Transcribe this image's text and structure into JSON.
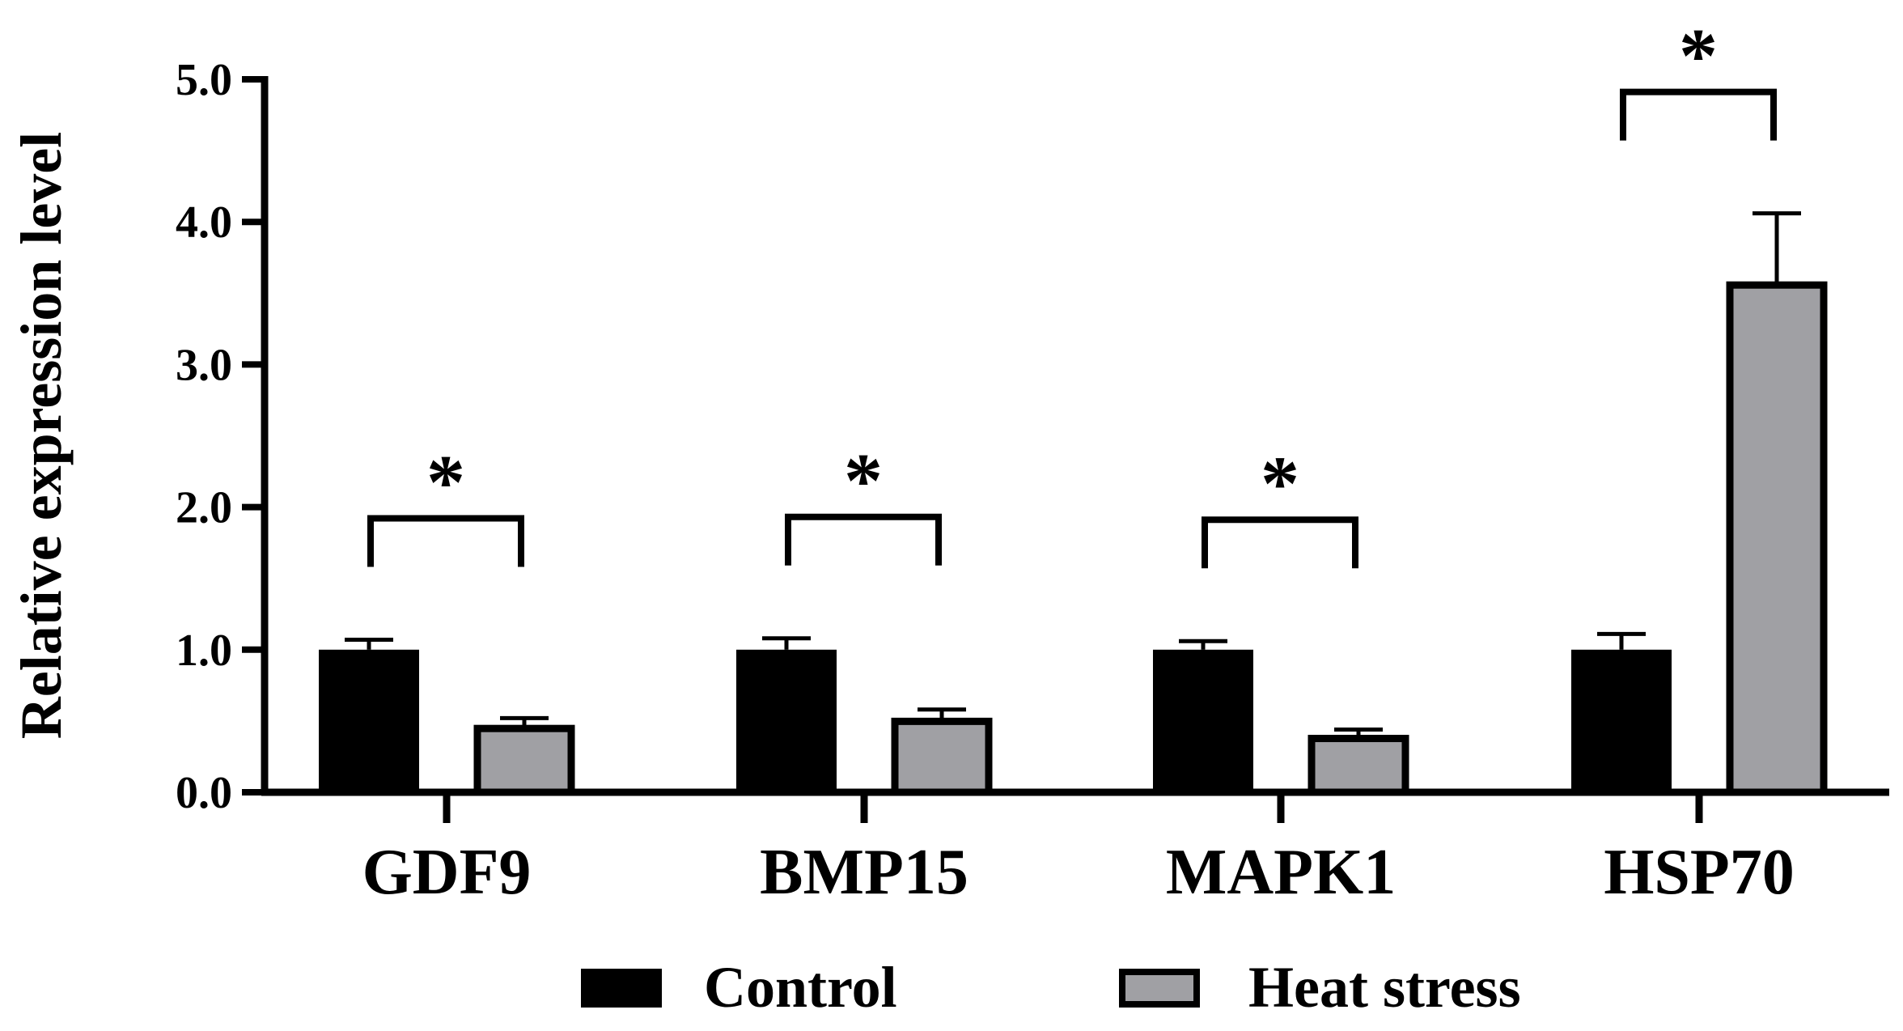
{
  "chart_data": {
    "type": "bar",
    "categories": [
      "GDF9",
      "BMP15",
      "MAPK1",
      "HSP70"
    ],
    "ylabel": "Relative expression level",
    "xlabel": "",
    "title": "",
    "ylim": [
      0,
      5.0
    ],
    "yticks": [
      "0.0",
      "1.0",
      "2.0",
      "3.0",
      "4.0",
      "5.0"
    ],
    "legend_position": "bottom-center",
    "grid": false,
    "series": [
      {
        "name": "Control",
        "color": "#000000",
        "values": [
          1.0,
          1.0,
          1.0,
          1.0
        ],
        "errors": [
          0.07,
          0.08,
          0.06,
          0.11
        ]
      },
      {
        "name": "Heat stress",
        "color": "#a0a0a4",
        "values": [
          0.47,
          0.52,
          0.4,
          3.58
        ],
        "errors": [
          0.05,
          0.06,
          0.04,
          0.48
        ]
      }
    ],
    "annotations": [
      {
        "category": "GDF9",
        "text": "*"
      },
      {
        "category": "BMP15",
        "text": "*"
      },
      {
        "category": "MAPK1",
        "text": "*"
      },
      {
        "category": "HSP70",
        "text": "*"
      }
    ]
  }
}
